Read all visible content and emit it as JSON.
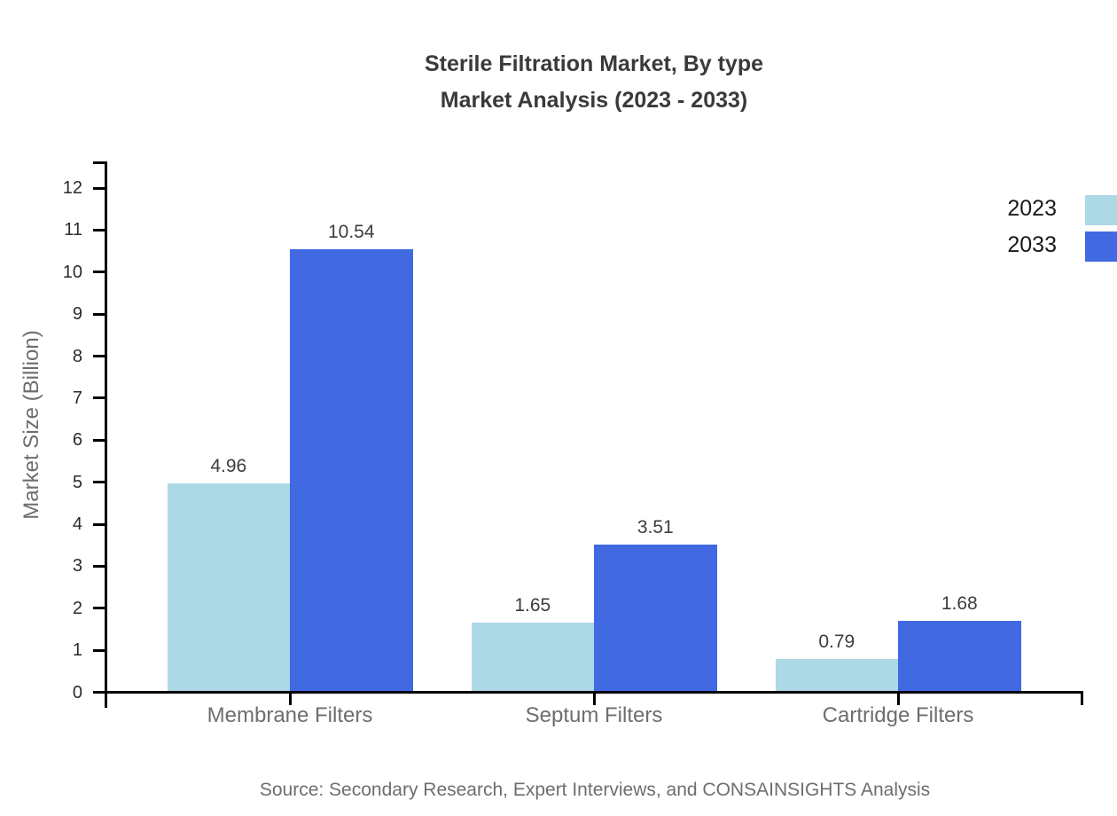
{
  "title": {
    "line1": "Sterile Filtration Market, By type",
    "line2": "Market Analysis (2023 - 2033)"
  },
  "source_note": "Source: Secondary Research, Expert Interviews, and CONSAINSIGHTS Analysis",
  "chart_data": {
    "type": "bar",
    "title": "Sterile Filtration Market, By type — Market Analysis (2023 - 2033)",
    "categories": [
      "Membrane Filters",
      "Septum Filters",
      "Cartridge Filters"
    ],
    "series": [
      {
        "name": "2023",
        "color": "#ADD8E6",
        "values": [
          4.96,
          1.65,
          0.79
        ]
      },
      {
        "name": "2033",
        "color": "#4169E1",
        "values": [
          10.54,
          3.51,
          1.68
        ]
      }
    ],
    "xlabel": "",
    "ylabel": "Market Size (Billion)",
    "ylim": [
      0,
      12
    ],
    "ytick_step": 1,
    "grid": false,
    "legend_position": "top-right",
    "value_labels_shown": true,
    "colors": {
      "axis": "#000000",
      "title_text": "#3a3a3a",
      "tick_text": "#2b2b2b",
      "value_text": "#3d3d3d",
      "category_text": "#6e6e6e",
      "source_text": "#6e6e6e"
    }
  }
}
